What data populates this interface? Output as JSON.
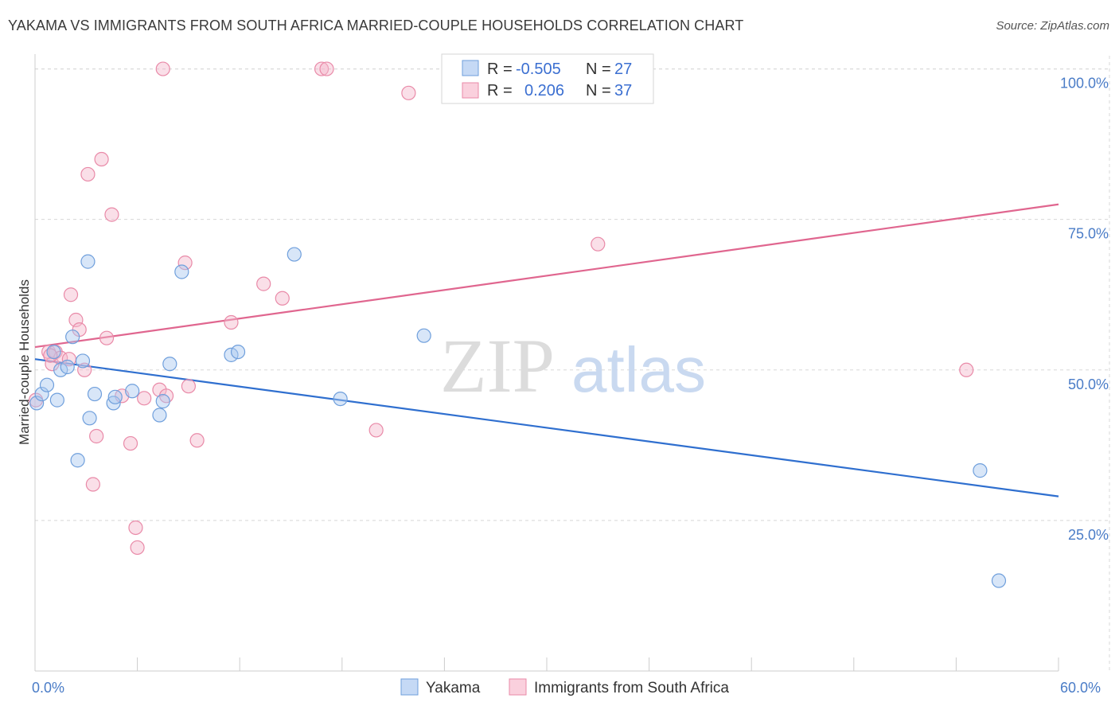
{
  "title": "YAKAMA VS IMMIGRANTS FROM SOUTH AFRICA MARRIED-COUPLE HOUSEHOLDS CORRELATION CHART",
  "source": "Source: ZipAtlas.com",
  "watermark": {
    "zip": "ZIP",
    "atlas": "atlas"
  },
  "colors": {
    "blue_fill": "#a9c7ef",
    "blue_stroke": "#6f9fdc",
    "blue_line": "#2f6fcf",
    "pink_fill": "#f5b8cb",
    "pink_stroke": "#e98aa8",
    "pink_line": "#e0668f",
    "grid": "#d8d8d8",
    "axis_text": "#4a7cc7"
  },
  "legend": {
    "rows": [
      {
        "r_label": "R = ",
        "r_value": "-0.505",
        "n_label": "N = ",
        "n_value": "27"
      },
      {
        "r_label": "R = ",
        "r_value": "0.206",
        "n_label": "N = ",
        "n_value": "37"
      }
    ]
  },
  "bottom_legend": {
    "series1": "Yakama",
    "series2": "Immigrants from South Africa"
  },
  "chart_data": {
    "type": "scatter",
    "xlabel": "",
    "ylabel": "Married-couple Households",
    "xlim": [
      0,
      60
    ],
    "ylim": [
      0,
      101
    ],
    "x_tick_labels": [
      "0.0%",
      "60.0%"
    ],
    "y_ticks": [
      25,
      50,
      75,
      100
    ],
    "y_tick_labels": [
      "25.0%",
      "50.0%",
      "75.0%",
      "100.0%"
    ],
    "grid": true,
    "series": [
      {
        "name": "Yakama",
        "color": "#6f9fdc",
        "points": [
          {
            "x": 0.1,
            "y": 44.5
          },
          {
            "x": 0.4,
            "y": 46.0
          },
          {
            "x": 0.7,
            "y": 47.5
          },
          {
            "x": 1.1,
            "y": 53.0
          },
          {
            "x": 1.3,
            "y": 45.0
          },
          {
            "x": 1.5,
            "y": 50.0
          },
          {
            "x": 1.9,
            "y": 50.5
          },
          {
            "x": 2.2,
            "y": 55.5
          },
          {
            "x": 2.5,
            "y": 35.0
          },
          {
            "x": 2.8,
            "y": 51.5
          },
          {
            "x": 3.1,
            "y": 68.0
          },
          {
            "x": 3.2,
            "y": 42.0
          },
          {
            "x": 3.5,
            "y": 46.0
          },
          {
            "x": 4.6,
            "y": 44.5
          },
          {
            "x": 4.7,
            "y": 45.5
          },
          {
            "x": 5.7,
            "y": 46.5
          },
          {
            "x": 7.3,
            "y": 42.5
          },
          {
            "x": 7.5,
            "y": 44.8
          },
          {
            "x": 7.9,
            "y": 51.0
          },
          {
            "x": 8.6,
            "y": 66.3
          },
          {
            "x": 11.5,
            "y": 52.5
          },
          {
            "x": 11.9,
            "y": 53.0
          },
          {
            "x": 15.2,
            "y": 69.2
          },
          {
            "x": 17.9,
            "y": 45.2
          },
          {
            "x": 22.8,
            "y": 55.7
          },
          {
            "x": 55.4,
            "y": 33.3
          },
          {
            "x": 56.5,
            "y": 15.0
          }
        ],
        "trend": {
          "x": [
            0,
            60
          ],
          "y": [
            51.8,
            29.0
          ]
        }
      },
      {
        "name": "Immigrants from South Africa",
        "color": "#e98aa8",
        "points": [
          {
            "x": 0.05,
            "y": 45.0
          },
          {
            "x": 0.8,
            "y": 53.0
          },
          {
            "x": 1.0,
            "y": 51.0
          },
          {
            "x": 1.2,
            "y": 53.0
          },
          {
            "x": 1.5,
            "y": 52.0
          },
          {
            "x": 2.0,
            "y": 51.8
          },
          {
            "x": 2.1,
            "y": 62.5
          },
          {
            "x": 2.4,
            "y": 58.3
          },
          {
            "x": 2.6,
            "y": 56.7
          },
          {
            "x": 2.9,
            "y": 50.0
          },
          {
            "x": 3.1,
            "y": 82.5
          },
          {
            "x": 3.4,
            "y": 31.0
          },
          {
            "x": 3.6,
            "y": 39.0
          },
          {
            "x": 3.9,
            "y": 85.0
          },
          {
            "x": 4.2,
            "y": 55.3
          },
          {
            "x": 4.5,
            "y": 75.8
          },
          {
            "x": 5.1,
            "y": 45.7
          },
          {
            "x": 5.6,
            "y": 37.8
          },
          {
            "x": 5.9,
            "y": 23.8
          },
          {
            "x": 6.0,
            "y": 20.5
          },
          {
            "x": 6.4,
            "y": 45.3
          },
          {
            "x": 7.3,
            "y": 46.7
          },
          {
            "x": 7.5,
            "y": 100.0
          },
          {
            "x": 7.7,
            "y": 45.7
          },
          {
            "x": 8.8,
            "y": 67.8
          },
          {
            "x": 9.0,
            "y": 47.3
          },
          {
            "x": 9.5,
            "y": 38.3
          },
          {
            "x": 11.5,
            "y": 57.9
          },
          {
            "x": 13.4,
            "y": 64.3
          },
          {
            "x": 14.5,
            "y": 61.9
          },
          {
            "x": 16.8,
            "y": 100.0
          },
          {
            "x": 17.1,
            "y": 100.0
          },
          {
            "x": 20.0,
            "y": 40.0
          },
          {
            "x": 21.9,
            "y": 96.0
          },
          {
            "x": 33.0,
            "y": 70.9
          },
          {
            "x": 54.6,
            "y": 50.0
          },
          {
            "x": 0.9,
            "y": 52.4
          }
        ],
        "trend": {
          "x": [
            0,
            60
          ],
          "y": [
            53.8,
            77.5
          ]
        }
      }
    ]
  }
}
